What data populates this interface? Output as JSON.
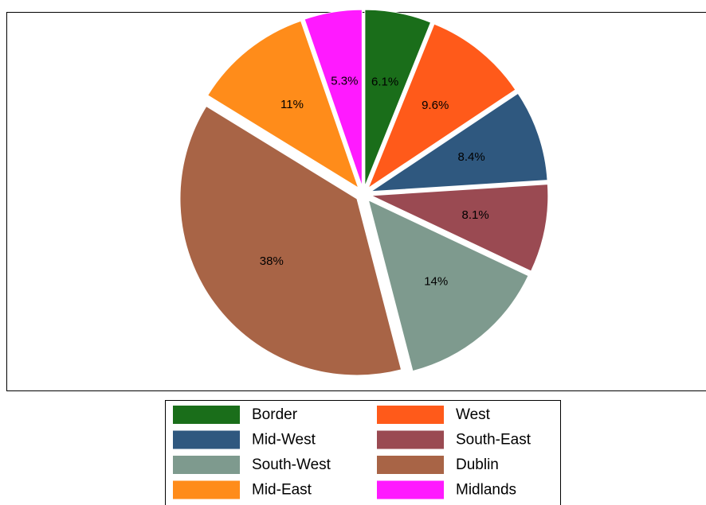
{
  "chart_data": {
    "type": "pie",
    "categories": [
      "Border",
      "West",
      "Mid-West",
      "South-East",
      "South-West",
      "Dublin",
      "Mid-East",
      "Midlands"
    ],
    "values": [
      6.1,
      9.6,
      8.4,
      8.1,
      14,
      38,
      11,
      5.3
    ],
    "value_labels": [
      "6.1%",
      "9.6%",
      "8.4%",
      "8.1%",
      "14%",
      "38%",
      "11%",
      "5.3%"
    ],
    "colors": [
      "#1a6e1a",
      "#ff5a1a",
      "#2f587f",
      "#9a4a52",
      "#7e9a8e",
      "#a86446",
      "#ff8c1a",
      "#ff1aff"
    ],
    "legend": "bottom"
  }
}
